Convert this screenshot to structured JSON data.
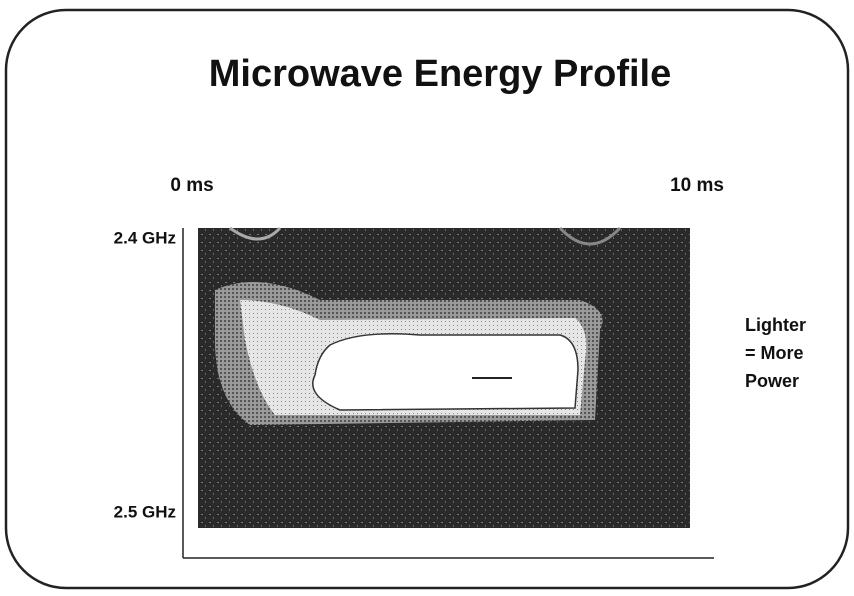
{
  "slide": {
    "title": "Microwave Energy Profile",
    "time_labels": [
      "0 ms",
      "10 ms"
    ],
    "frequency_labels": [
      "2.4 GHz",
      "2.5 GHz"
    ],
    "legend_lines": [
      "Lighter",
      "= More",
      "Power"
    ]
  }
}
